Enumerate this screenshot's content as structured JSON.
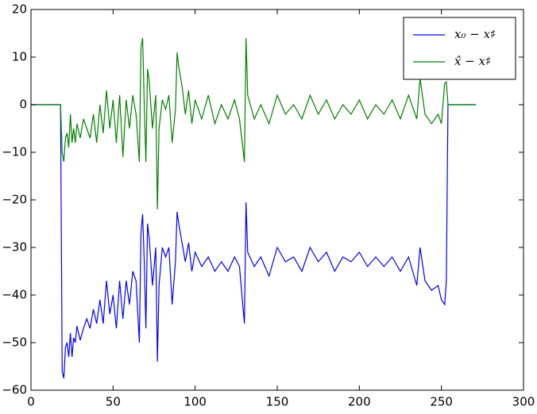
{
  "chart_data": {
    "type": "line",
    "x": [
      0,
      18,
      19,
      20,
      21,
      22,
      23,
      24,
      25,
      26,
      27,
      28,
      30,
      32,
      34,
      36,
      38,
      40,
      42,
      44,
      46,
      48,
      50,
      52,
      54,
      56,
      58,
      60,
      62,
      64,
      66,
      67,
      68,
      69,
      70,
      71,
      72,
      74,
      76,
      77,
      78,
      80,
      82,
      84,
      86,
      88,
      89,
      90,
      92,
      94,
      96,
      98,
      100,
      104,
      108,
      112,
      116,
      120,
      124,
      127,
      130,
      131,
      132,
      136,
      140,
      145,
      150,
      155,
      160,
      165,
      170,
      175,
      180,
      185,
      190,
      195,
      200,
      205,
      210,
      215,
      220,
      225,
      230,
      235,
      237,
      240,
      244,
      248,
      250,
      252,
      253,
      254,
      271
    ],
    "series": [
      {
        "name": "x₀ − x♯",
        "color": "#0000ff",
        "values": [
          0,
          0,
          -56,
          -57.5,
          -51,
          -50,
          -53,
          -48,
          -53,
          -49,
          -50,
          -46.5,
          -49.5,
          -47,
          -45,
          -47,
          -43,
          -46,
          -41,
          -46,
          -37,
          -44,
          -40,
          -47,
          -37,
          -45,
          -37,
          -42,
          -35,
          -37,
          -50,
          -27,
          -23,
          -33,
          -47,
          -25,
          -28,
          -38,
          -30,
          -54,
          -38,
          -30,
          -32,
          -30,
          -42,
          -33,
          -22.5,
          -25,
          -29,
          -33,
          -29,
          -35,
          -31,
          -34,
          -32,
          -35,
          -33,
          -35,
          -32,
          -34,
          -46,
          -20.5,
          -31,
          -34,
          -32,
          -36,
          -30,
          -33,
          -32,
          -35,
          -30,
          -33,
          -31,
          -35,
          -32,
          -33,
          -31,
          -34,
          -32,
          -34,
          -32,
          -35,
          -32,
          -38,
          -30,
          -37,
          -39,
          -38,
          -41,
          -42,
          -37,
          0,
          0
        ]
      },
      {
        "name": "x̂ − x♯",
        "color": "#008000",
        "values": [
          0,
          0,
          -10,
          -12,
          -7,
          -6,
          -9,
          -2,
          -8,
          -5,
          -8,
          -4,
          -7,
          -3,
          -5,
          -7,
          -2,
          -8,
          0,
          -6,
          3,
          -5,
          1,
          -8,
          2,
          -11,
          1,
          -5,
          2,
          -2,
          -12,
          12,
          14,
          0,
          -12,
          7.5,
          5,
          -5,
          2,
          -22,
          -5,
          1,
          -1,
          2,
          -8,
          -1,
          11,
          8,
          4,
          -2,
          3,
          -4,
          1,
          -3,
          2,
          -4,
          0,
          -3,
          1,
          -3,
          -12,
          14,
          2,
          -3,
          0,
          -4,
          2,
          -2,
          0,
          -3,
          2,
          -2,
          1,
          -3,
          0,
          -2,
          1,
          -3,
          0,
          -2,
          1,
          -3,
          2,
          -3,
          5.5,
          -2,
          -4,
          -2,
          -4,
          4.5,
          4.8,
          0,
          0
        ]
      }
    ],
    "xlim": [
      0,
      300
    ],
    "xticks": [
      0,
      50,
      100,
      150,
      200,
      250,
      300
    ],
    "ylim": [
      -60,
      20
    ],
    "yticks": [
      {
        "value": -60,
        "label": "−60"
      },
      {
        "value": -50,
        "label": "−50"
      },
      {
        "value": -40,
        "label": "−40"
      },
      {
        "value": -30,
        "label": "−30"
      },
      {
        "value": -20,
        "label": "−20"
      },
      {
        "value": -10,
        "label": "−10"
      },
      0,
      10,
      20
    ],
    "grid": false,
    "legend": "upper right"
  }
}
